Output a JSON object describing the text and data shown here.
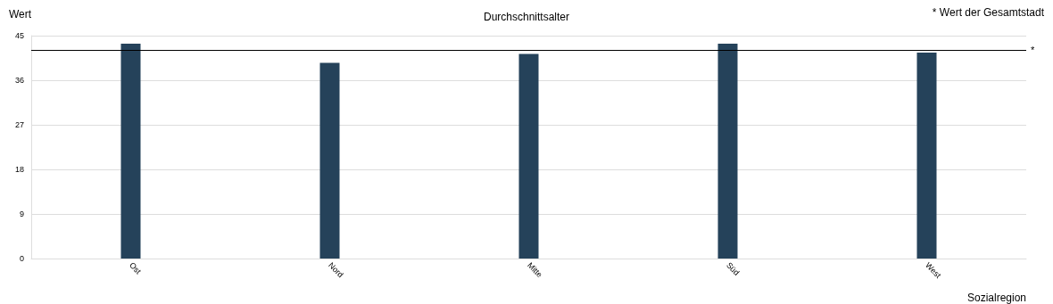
{
  "chart_data": {
    "type": "bar",
    "title": "Durchschnittsalter",
    "ylabel": "Wert",
    "xlabel": "Sozialregion",
    "annotations": [
      "* Wert der Gesamtstadt"
    ],
    "categories": [
      "Ost",
      "Nord",
      "Mitte",
      "Süd",
      "West"
    ],
    "values": [
      43.4,
      39.5,
      41.3,
      43.4,
      41.6
    ],
    "color": "#25425a",
    "ylim": [
      0,
      45
    ],
    "yticks": [
      0,
      9,
      18,
      27,
      36,
      45
    ],
    "grid": "y",
    "ref_lines": [
      {
        "axis": "y",
        "value": 42.1,
        "label": "*",
        "color": "#000000"
      }
    ]
  }
}
